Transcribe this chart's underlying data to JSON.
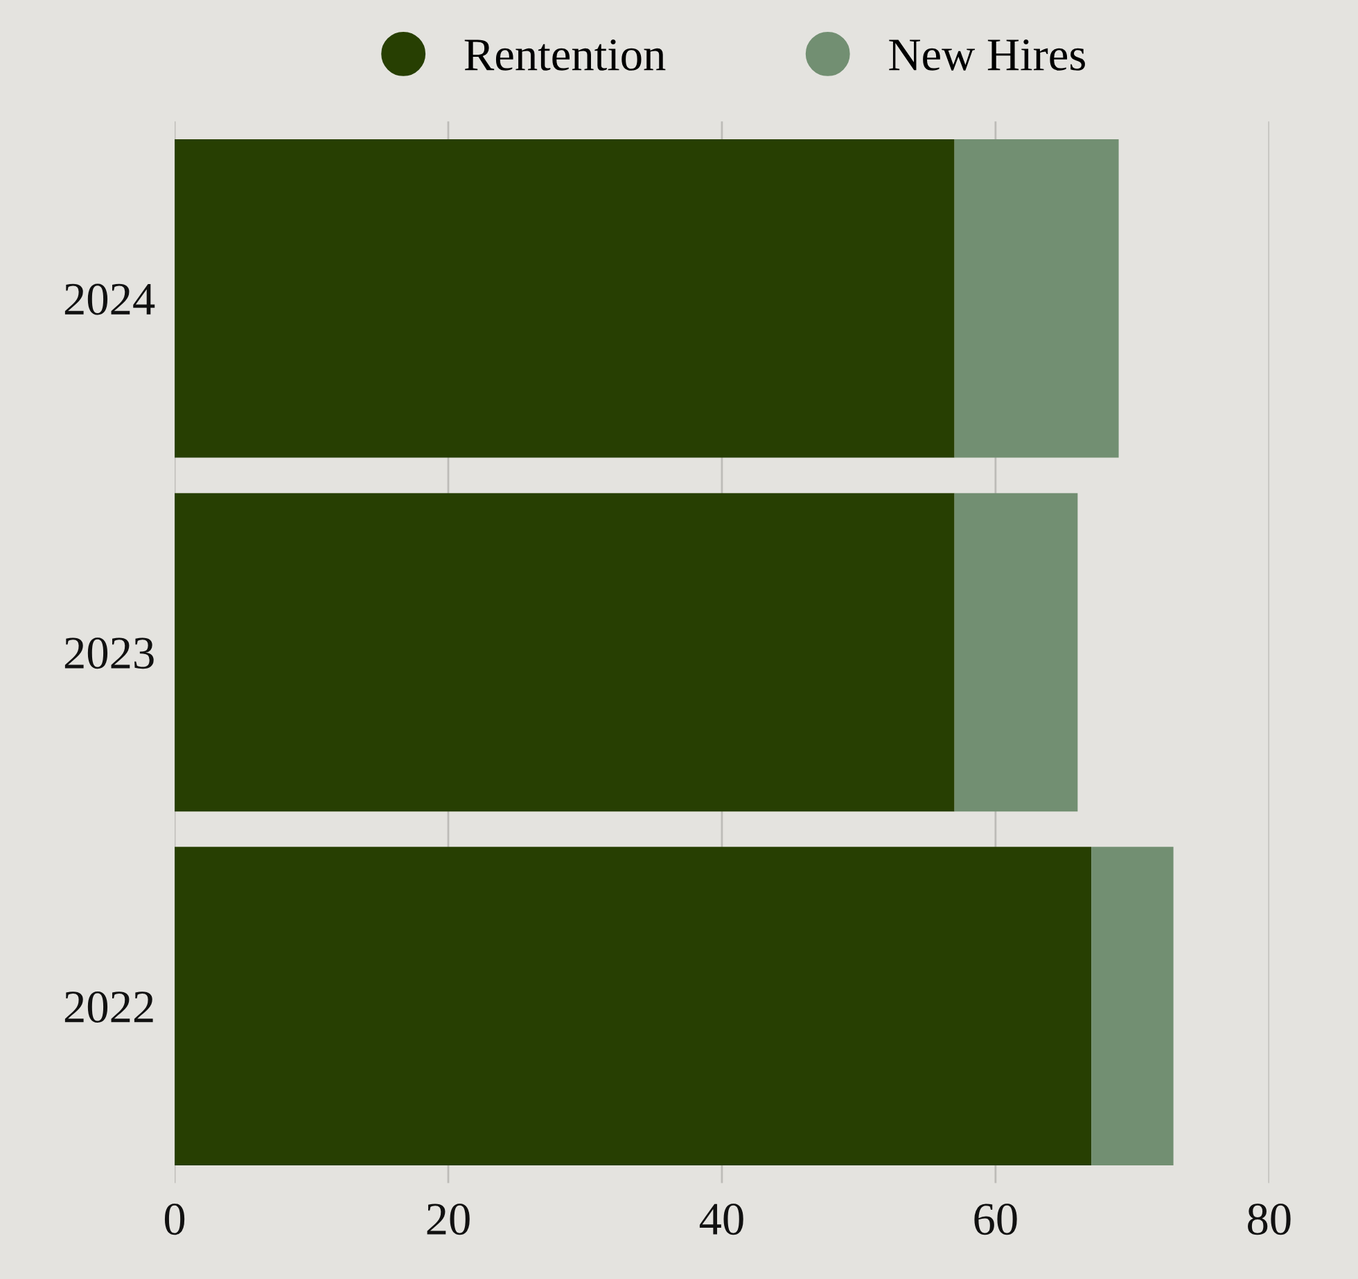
{
  "chart_data": {
    "type": "bar",
    "orientation": "horizontal",
    "stacked": true,
    "categories": [
      "2024",
      "2023",
      "2022"
    ],
    "series": [
      {
        "name": "Rentention",
        "color": "#273f02",
        "values": [
          57,
          57,
          67
        ]
      },
      {
        "name": "New Hires",
        "color": "#728f72",
        "values": [
          12,
          9,
          6
        ]
      }
    ],
    "xlim": [
      0,
      80
    ],
    "xticks": [
      0,
      20,
      40,
      60,
      80
    ],
    "grid": "x",
    "legend": "top"
  }
}
